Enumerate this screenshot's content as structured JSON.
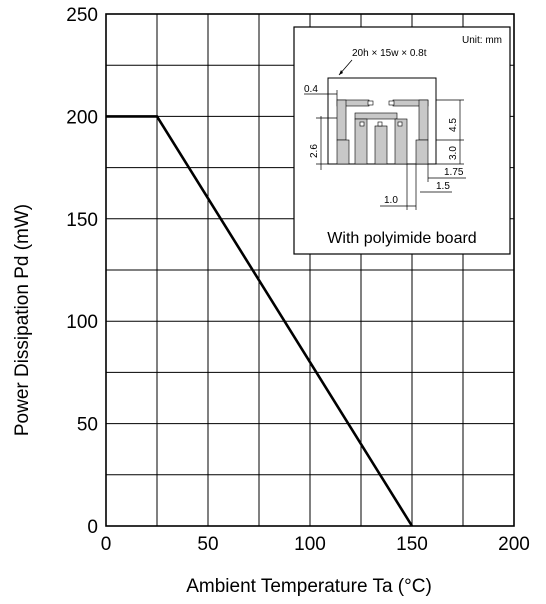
{
  "chart_data": {
    "type": "line",
    "title": "",
    "xlabel": "Ambient Temperature   Ta   (°C)",
    "ylabel": "Power Dissipation   Pd   (mW)",
    "xlim": [
      0,
      200
    ],
    "ylim": [
      0,
      250
    ],
    "x_ticks": [
      0,
      50,
      100,
      150,
      200
    ],
    "y_ticks": [
      0,
      50,
      100,
      150,
      200,
      250
    ],
    "x_tick_labels": [
      "0",
      "50",
      "100",
      "150",
      "200"
    ],
    "y_tick_labels": [
      "0",
      "50",
      "100",
      "150",
      "200",
      "250"
    ],
    "grid": true,
    "grid_x_step": 25,
    "grid_y_step": 25,
    "series": [
      {
        "x": [
          0,
          25,
          150
        ],
        "y": [
          200,
          200,
          0
        ],
        "color": "#000000"
      }
    ],
    "annotations": {
      "inset": {
        "unit": "Unit: mm",
        "board_spec": "20h × 15w × 0.8t",
        "caption": "With polyimide board",
        "dimensions": [
          "0.4",
          "2.6",
          "4.5",
          "3.0",
          "1.75",
          "1.5",
          "1.0"
        ]
      }
    }
  }
}
